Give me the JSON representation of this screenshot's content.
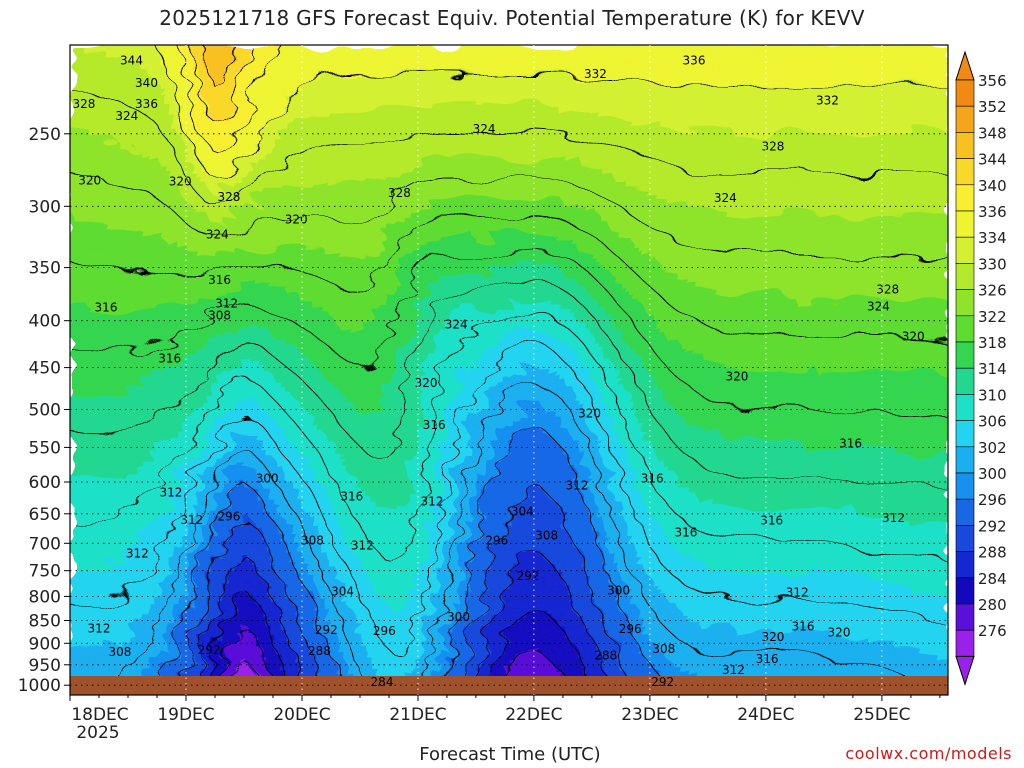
{
  "chart_data": {
    "type": "heatmap",
    "title": "2025121718 GFS Forecast Equiv. Potential Temperature (K) for KEVV",
    "xlabel": "Forecast Time (UTC)",
    "ylabel": "",
    "credit": "coolwx.com/models",
    "x_ticks": [
      "18DEC",
      "19DEC",
      "20DEC",
      "21DEC",
      "22DEC",
      "23DEC",
      "24DEC",
      "25DEC"
    ],
    "x_year_label": "2025",
    "y_ticks": [
      "250",
      "300",
      "350",
      "400",
      "450",
      "500",
      "550",
      "600",
      "650",
      "700",
      "750",
      "800",
      "850",
      "900",
      "950",
      "1000"
    ],
    "y_tick_values": [
      250,
      300,
      350,
      400,
      450,
      500,
      550,
      600,
      650,
      700,
      750,
      800,
      850,
      900,
      950,
      1000
    ],
    "x_range_days": [
      0,
      7.57
    ],
    "y_range_hpa": [
      200,
      1025
    ],
    "scale": "log-pressure",
    "colorbar": {
      "levels": [
        "356",
        "352",
        "348",
        "344",
        "340",
        "336",
        "334",
        "330",
        "326",
        "322",
        "318",
        "314",
        "310",
        "306",
        "302",
        "300",
        "296",
        "292",
        "288",
        "284",
        "280",
        "276"
      ],
      "colors": [
        "#f08a10",
        "#f5a51a",
        "#f8c020",
        "#fad82a",
        "#f8ef30",
        "#eef530",
        "#d4f030",
        "#b4ea2c",
        "#8ee42a",
        "#5edc30",
        "#34d650",
        "#22d890",
        "#1ee0c8",
        "#22d4ef",
        "#1ab0f0",
        "#1890f0",
        "#1868e6",
        "#1848dc",
        "#1228d0",
        "#1208c0",
        "#5a10d8",
        "#9a20ec"
      ],
      "min_label": "276",
      "max_label": "356"
    },
    "contour_labels": [
      {
        "text": "344",
        "t": 0.53,
        "p": 208
      },
      {
        "text": "340",
        "t": 0.66,
        "p": 220
      },
      {
        "text": "336",
        "t": 0.66,
        "p": 232
      },
      {
        "text": "328",
        "t": 0.12,
        "p": 232
      },
      {
        "text": "324",
        "t": 0.49,
        "p": 239
      },
      {
        "text": "320",
        "t": 0.17,
        "p": 281
      },
      {
        "text": "320",
        "t": 0.95,
        "p": 282
      },
      {
        "text": "328",
        "t": 1.37,
        "p": 293
      },
      {
        "text": "324",
        "t": 1.27,
        "p": 322
      },
      {
        "text": "320",
        "t": 1.95,
        "p": 310
      },
      {
        "text": "328",
        "t": 2.84,
        "p": 290
      },
      {
        "text": "332",
        "t": 4.53,
        "p": 215
      },
      {
        "text": "336",
        "t": 5.38,
        "p": 208
      },
      {
        "text": "332",
        "t": 6.53,
        "p": 230
      },
      {
        "text": "328",
        "t": 6.06,
        "p": 258
      },
      {
        "text": "324",
        "t": 3.57,
        "p": 247
      },
      {
        "text": "324",
        "t": 5.65,
        "p": 294
      },
      {
        "text": "324",
        "t": 3.33,
        "p": 404
      },
      {
        "text": "328",
        "t": 7.05,
        "p": 370
      },
      {
        "text": "324",
        "t": 6.97,
        "p": 386
      },
      {
        "text": "320",
        "t": 7.27,
        "p": 416
      },
      {
        "text": "320",
        "t": 5.75,
        "p": 460
      },
      {
        "text": "320",
        "t": 4.48,
        "p": 505
      },
      {
        "text": "320",
        "t": 3.07,
        "p": 468
      },
      {
        "text": "316",
        "t": 1.29,
        "p": 361
      },
      {
        "text": "312",
        "t": 1.35,
        "p": 383
      },
      {
        "text": "308",
        "t": 1.29,
        "p": 395
      },
      {
        "text": "316",
        "t": 0.31,
        "p": 387
      },
      {
        "text": "316",
        "t": 0.86,
        "p": 440
      },
      {
        "text": "316",
        "t": 3.14,
        "p": 520
      },
      {
        "text": "316",
        "t": 6.73,
        "p": 545
      },
      {
        "text": "316",
        "t": 5.02,
        "p": 595
      },
      {
        "text": "316",
        "t": 2.43,
        "p": 622
      },
      {
        "text": "312",
        "t": 0.87,
        "p": 616
      },
      {
        "text": "312",
        "t": 1.05,
        "p": 660
      },
      {
        "text": "312",
        "t": 0.58,
        "p": 718
      },
      {
        "text": "300",
        "t": 1.7,
        "p": 595
      },
      {
        "text": "312",
        "t": 4.37,
        "p": 605
      },
      {
        "text": "312",
        "t": 3.12,
        "p": 630
      },
      {
        "text": "304",
        "t": 3.9,
        "p": 646
      },
      {
        "text": "296",
        "t": 1.37,
        "p": 654
      },
      {
        "text": "296",
        "t": 3.68,
        "p": 695
      },
      {
        "text": "308",
        "t": 2.09,
        "p": 695
      },
      {
        "text": "308",
        "t": 4.11,
        "p": 686
      },
      {
        "text": "312",
        "t": 2.52,
        "p": 704
      },
      {
        "text": "316",
        "t": 5.31,
        "p": 681
      },
      {
        "text": "316",
        "t": 6.05,
        "p": 661
      },
      {
        "text": "312",
        "t": 7.1,
        "p": 657
      },
      {
        "text": "292",
        "t": 3.95,
        "p": 760
      },
      {
        "text": "300",
        "t": 4.73,
        "p": 788
      },
      {
        "text": "304",
        "t": 2.35,
        "p": 790
      },
      {
        "text": "300",
        "t": 3.35,
        "p": 842
      },
      {
        "text": "312",
        "t": 6.27,
        "p": 792
      },
      {
        "text": "312",
        "t": 0.25,
        "p": 867
      },
      {
        "text": "308",
        "t": 0.43,
        "p": 920
      },
      {
        "text": "292",
        "t": 2.21,
        "p": 870
      },
      {
        "text": "296",
        "t": 2.71,
        "p": 873
      },
      {
        "text": "288",
        "t": 2.15,
        "p": 918
      },
      {
        "text": "292",
        "t": 1.2,
        "p": 915
      },
      {
        "text": "296",
        "t": 4.83,
        "p": 868
      },
      {
        "text": "308",
        "t": 5.12,
        "p": 913
      },
      {
        "text": "320",
        "t": 6.06,
        "p": 886
      },
      {
        "text": "316",
        "t": 6.32,
        "p": 863
      },
      {
        "text": "320",
        "t": 6.63,
        "p": 876
      },
      {
        "text": "316",
        "t": 6.01,
        "p": 936
      },
      {
        "text": "288",
        "t": 4.62,
        "p": 928
      },
      {
        "text": "312",
        "t": 5.72,
        "p": 963
      },
      {
        "text": "292",
        "t": 5.11,
        "p": 992
      },
      {
        "text": "284",
        "t": 2.69,
        "p": 992
      }
    ]
  }
}
